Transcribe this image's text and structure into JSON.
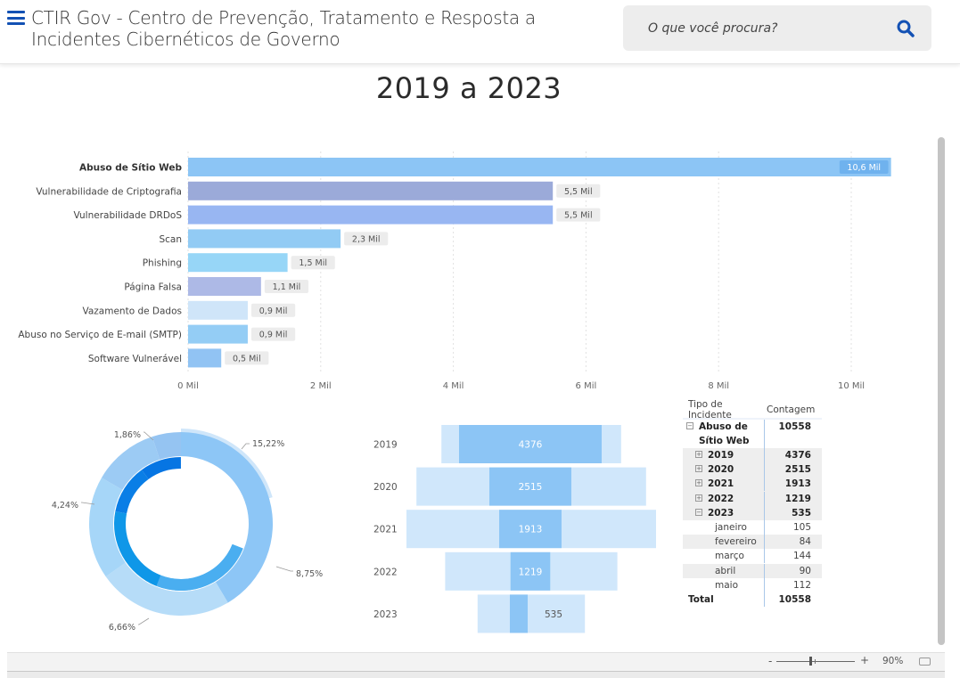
{
  "header": {
    "menu_icon": "hamburger-menu-icon",
    "title": "CTIR Gov - Centro de Prevenção, Tratamento e Resposta a Incidentes Cibernéticos de Governo",
    "search": {
      "placeholder": "O que você procura?",
      "value": "",
      "icon": "search-icon"
    }
  },
  "colors": {
    "brand": "#1351b4",
    "bar_primary": "#8cc5f5",
    "funnel_light": "#d0e7fb",
    "donut_inner_dark": "#0a78e3"
  },
  "report": {
    "title": "2019 a 2023"
  },
  "chart_data": [
    {
      "type": "bar",
      "orientation": "horizontal",
      "title": "",
      "categories": [
        "Abuso de Sítio Web",
        "Vulnerabilidade de Criptografia",
        "Vulnerabilidade DRDoS",
        "Scan",
        "Phishing",
        "Página Falsa",
        "Vazamento de Dados",
        "Abuso no Serviço de E-mail (SMTP)",
        "Software Vulnerável"
      ],
      "values": [
        10.6,
        5.5,
        5.5,
        2.3,
        1.5,
        1.1,
        0.9,
        0.9,
        0.5
      ],
      "data_labels": [
        "10,6 Mil",
        "5,5 Mil",
        "5,5 Mil",
        "2,3 Mil",
        "1,5 Mil",
        "1,1 Mil",
        "0,9 Mil",
        "0,9 Mil",
        "0,5 Mil"
      ],
      "bar_colors": [
        "#8cc5f5",
        "#9baad9",
        "#98b6f2",
        "#92cbf4",
        "#97d6f7",
        "#adb9e6",
        "#cfe5f9",
        "#94cdf5",
        "#91c3f3"
      ],
      "highlighted": "Abuso de Sítio Web",
      "xlabel": "",
      "ylabel": "",
      "xlim": [
        0,
        10.6
      ],
      "x_ticks": [
        0,
        2,
        4,
        6,
        8,
        10
      ],
      "x_tick_labels": [
        "0 Mil",
        "2 Mil",
        "4 Mil",
        "6 Mil",
        "8 Mil",
        "10 Mil"
      ],
      "grid": true,
      "unit": "Mil"
    },
    {
      "type": "pie",
      "subtype": "donut",
      "title": "",
      "outer_ring": {
        "labels": [
          "2019",
          "2020",
          "2021",
          "2022",
          "2023"
        ],
        "values": [
          4376,
          2515,
          1913,
          1219,
          535
        ],
        "colors": [
          "#8dc6f6",
          "#b6dcf8",
          "#a6d6f8",
          "#9ccbf4",
          "#95c4f2"
        ]
      },
      "inner_ring": {
        "colors": [
          "#4aaef0",
          "#0f97e8",
          "#0a7ee6",
          "#0675e3"
        ]
      },
      "data_labels": [
        "15,22%",
        "8,75%",
        "6,66%",
        "4,24%",
        "1,86%"
      ]
    },
    {
      "type": "bar",
      "subtype": "funnel",
      "title": "",
      "categories": [
        "2019",
        "2020",
        "2021",
        "2022",
        "2023"
      ],
      "values": [
        4376,
        2515,
        1913,
        1219,
        535
      ],
      "data_labels": [
        "4376",
        "2515",
        "1913",
        "1219",
        "535"
      ],
      "background_widths_relative": [
        0.72,
        0.92,
        1.0,
        0.69,
        0.43
      ]
    },
    {
      "type": "table",
      "columns": [
        "Tipo de Incidente",
        "Contagem"
      ],
      "rows": [
        {
          "label": "Abuso de Sítio Web",
          "value": "10558",
          "level": 0,
          "expander": "minus"
        },
        {
          "label": "2019",
          "value": "4376",
          "level": 1,
          "expander": "plus"
        },
        {
          "label": "2020",
          "value": "2515",
          "level": 1,
          "expander": "plus"
        },
        {
          "label": "2021",
          "value": "1913",
          "level": 1,
          "expander": "plus"
        },
        {
          "label": "2022",
          "value": "1219",
          "level": 1,
          "expander": "plus"
        },
        {
          "label": "2023",
          "value": "535",
          "level": 1,
          "expander": "minus"
        },
        {
          "label": "janeiro",
          "value": "105",
          "level": 2
        },
        {
          "label": "fevereiro",
          "value": "84",
          "level": 2
        },
        {
          "label": "março",
          "value": "144",
          "level": 2
        },
        {
          "label": "abril",
          "value": "90",
          "level": 2
        },
        {
          "label": "maio",
          "value": "112",
          "level": 2
        }
      ],
      "total": {
        "label": "Total",
        "value": "10558"
      }
    }
  ],
  "footer": {
    "zoom_minus": "-",
    "zoom_plus": "+",
    "zoom_level": "90%",
    "fit_icon": "fit-to-page-icon"
  }
}
